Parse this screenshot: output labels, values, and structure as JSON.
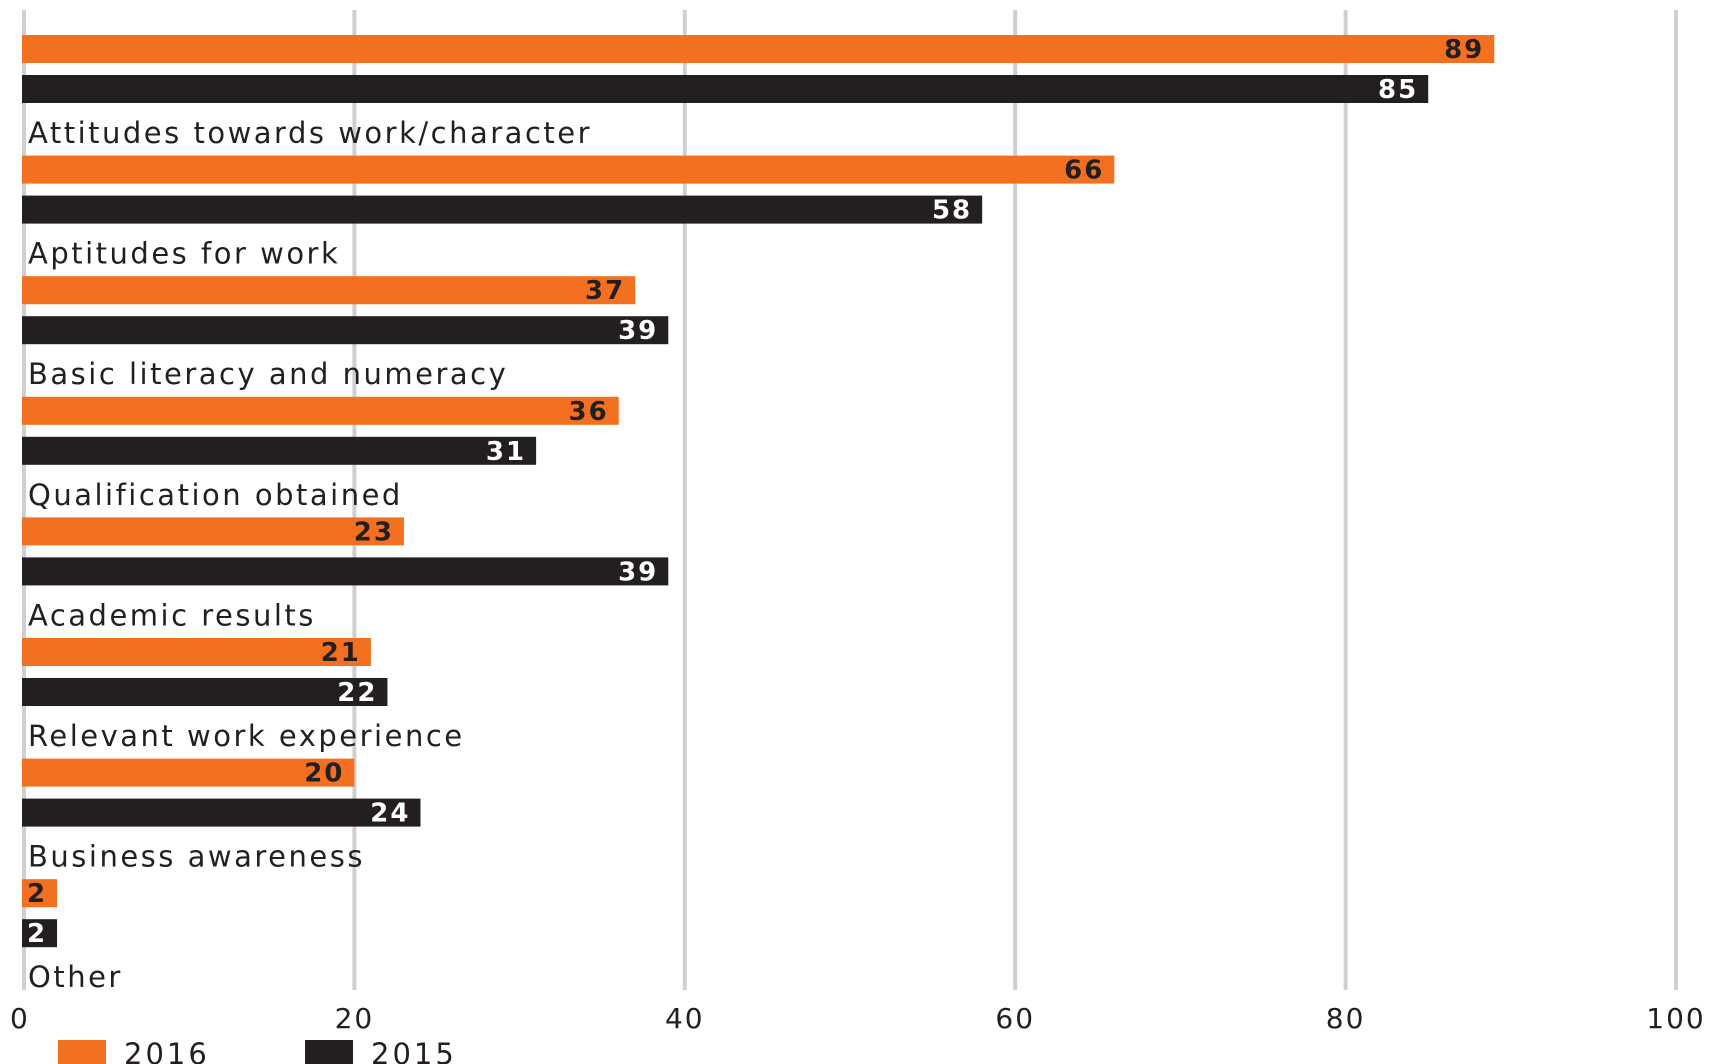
{
  "chart_data": {
    "type": "bar",
    "orientation": "horizontal",
    "categories": [
      "Attitudes towards work/character",
      "Aptitudes for work",
      "Basic literacy and numeracy",
      "Qualification obtained",
      "Academic results",
      "Relevant work experience",
      "Business awareness",
      "Other"
    ],
    "series": [
      {
        "name": "2016",
        "color": "#f37021",
        "label_color": "#231f20",
        "values": [
          89,
          66,
          37,
          36,
          23,
          21,
          20,
          2
        ]
      },
      {
        "name": "2015",
        "color": "#231f20",
        "label_color": "#ffffff",
        "values": [
          85,
          58,
          39,
          31,
          39,
          22,
          24,
          2
        ]
      }
    ],
    "xlim": [
      0,
      100
    ],
    "xticks": [
      "0",
      "20",
      "40",
      "60",
      "80",
      "100"
    ],
    "xtick_values": [
      0,
      20,
      40,
      60,
      80,
      100
    ],
    "grid": true,
    "legend_position": "bottom-left",
    "title": "",
    "xlabel": "",
    "ylabel": ""
  }
}
